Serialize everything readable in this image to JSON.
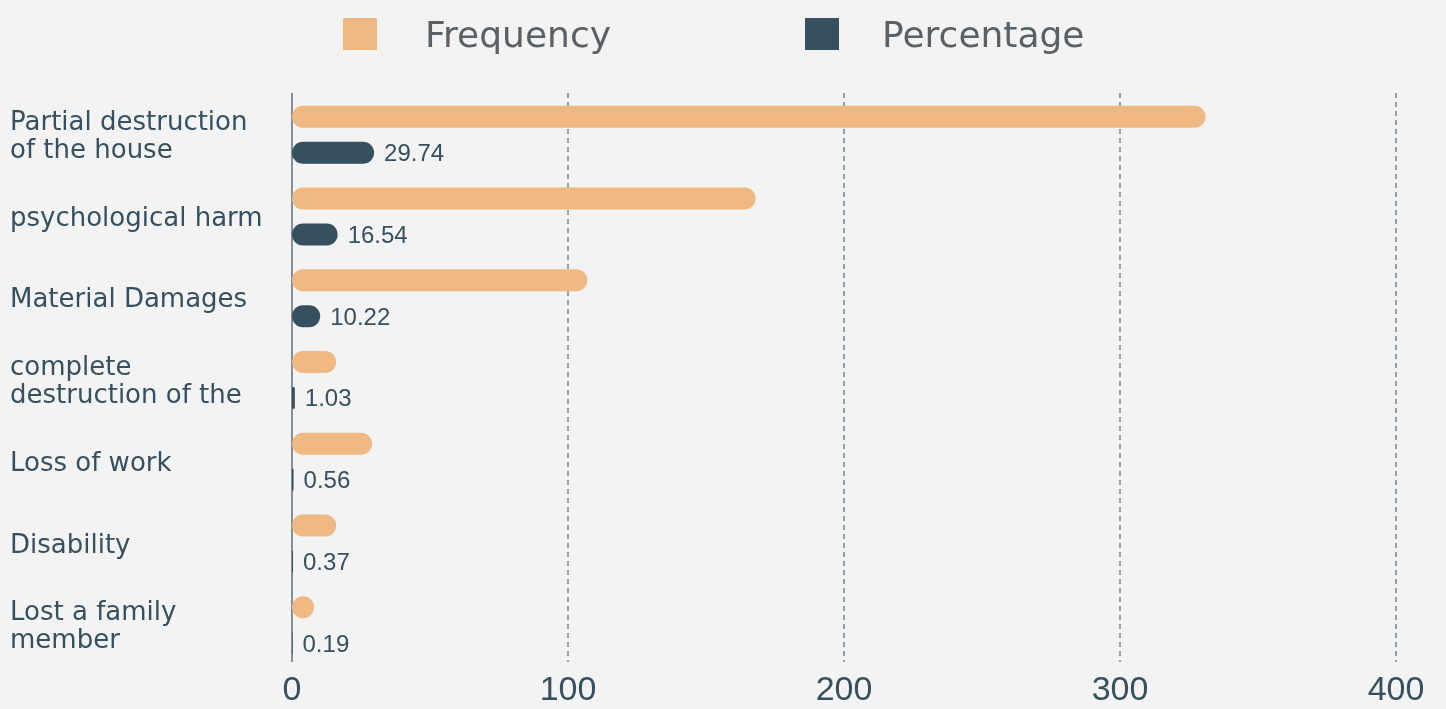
{
  "chart_data": {
    "type": "bar",
    "orientation": "horizontal",
    "categories": [
      "Partial destruction of the house",
      "psychological harm",
      "Material Damages",
      "complete destruction of the",
      "Loss of work",
      "Disability",
      "Lost a family member"
    ],
    "series": [
      {
        "name": "Frequency",
        "color": "#f0b983",
        "values": [
          331,
          168,
          107,
          16,
          29,
          16,
          8
        ]
      },
      {
        "name": "Percentage",
        "color": "#36505f",
        "values": [
          29.74,
          16.54,
          10.22,
          1.03,
          0.56,
          0.37,
          0.19
        ],
        "value_labels": [
          "29.74",
          "16.54",
          "10.22",
          "1.03",
          "0.56",
          "0.37",
          "0.19"
        ]
      }
    ],
    "xlim": [
      0,
      400
    ],
    "xticks": [
      0,
      100,
      200,
      300,
      400
    ],
    "grid": "x",
    "legend": "top"
  }
}
